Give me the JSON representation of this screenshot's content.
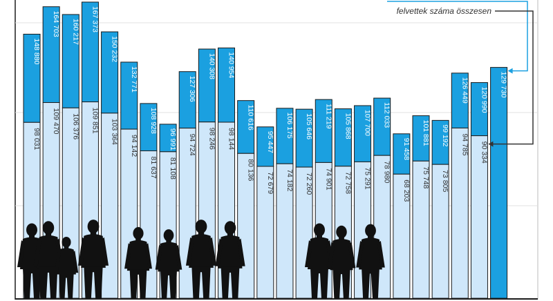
{
  "chart_data": {
    "type": "bar",
    "title": "",
    "xlabel": "",
    "ylabel": "",
    "ylim": [
      0,
      170000
    ],
    "grid": true,
    "legend_position": "top-right",
    "legend_note": "felvettek száma összesen",
    "colors": {
      "total": "#1ba0e0",
      "admitted": "#cfe7fa",
      "single": "#1ba0e0",
      "border": "#1a1a1a",
      "arrow_upper": "#1ba0e0",
      "arrow_lower": "#333333"
    },
    "series": [
      {
        "values": [
          148880,
          164703,
          160217,
          167373,
          150232,
          132771,
          108928,
          96991,
          127306,
          140308,
          140954,
          110616,
          95447,
          106175,
          105646,
          111219,
          105868,
          107700,
          112033,
          91458,
          101881,
          99192,
          126449,
          120990,
          129730
        ],
        "labels": [
          "148 880",
          "164 703",
          "160 217",
          "167 373",
          "150 232",
          "132 771",
          "108 928",
          "96 991",
          "127 306",
          "140 308",
          "140 954",
          "110 616",
          "95 447",
          "106 175",
          "105 646",
          "111 219",
          "105 868",
          "107 700",
          "112 033",
          "91 458",
          "101 881",
          "99 192",
          "126 449",
          "120 990",
          "129 730"
        ]
      },
      {
        "name": "felvettek száma összesen",
        "values": [
          98031,
          109470,
          106376,
          109851,
          103364,
          94142,
          81637,
          81108,
          94724,
          98246,
          98144,
          80136,
          72679,
          74182,
          72260,
          74901,
          72758,
          75291,
          78980,
          68203,
          75748,
          73805,
          94785,
          90334,
          null
        ],
        "labels": [
          "98 031",
          "109 470",
          "106 376",
          "109 851",
          "103 364",
          "94 142",
          "81 637",
          "81 108",
          "94 724",
          "98 246",
          "98 144",
          "80 136",
          "72 679",
          "74 182",
          "72 260",
          "74 901",
          "72 758",
          "75 291",
          "78 980",
          "68 203",
          "75 748",
          "73 805",
          "94 785",
          "90 334",
          ""
        ]
      }
    ]
  }
}
